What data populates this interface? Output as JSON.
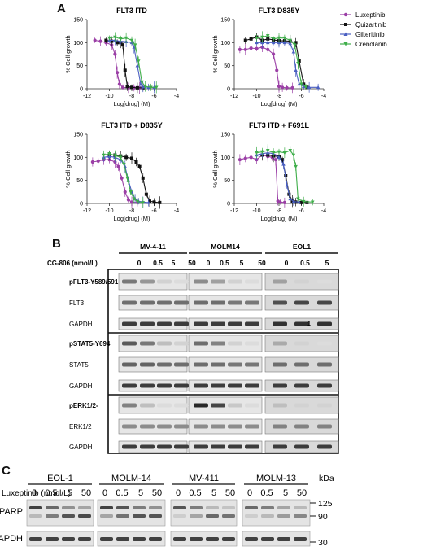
{
  "panel_a": {
    "letter": "A",
    "legend": [
      {
        "name": "Luxeptinib",
        "color": "#9b3fa6"
      },
      {
        "name": "Quizartinib",
        "color": "#111111"
      },
      {
        "name": "Gilteritinib",
        "color": "#4a5fc1"
      },
      {
        "name": "Crenolanib",
        "color": "#3fae4a"
      }
    ],
    "ylabel": "% Cell growth",
    "xlabel": "Log[drug] (M)"
  },
  "chart_data": [
    {
      "type": "line",
      "title": "FLT3 ITD",
      "xlabel": "Log[drug] (M)",
      "ylabel": "% Cell growth",
      "xlim": [
        -12,
        -4
      ],
      "ylim": [
        0,
        150
      ],
      "xticks": [
        -12,
        -10,
        -8,
        -6,
        -4
      ],
      "yticks": [
        0,
        50,
        100,
        150
      ],
      "series": [
        {
          "name": "Luxeptinib",
          "x": [
            -11.3,
            -10.8,
            -10.3,
            -9.8,
            -9.5,
            -9.3,
            -9.1,
            -8.8,
            -8.3,
            -7.8,
            -7.3
          ],
          "values": [
            105,
            103,
            100,
            95,
            75,
            35,
            10,
            3,
            2,
            2,
            2
          ]
        },
        {
          "name": "Quizartinib",
          "x": [
            -10.3,
            -9.8,
            -9.3,
            -9.0,
            -8.8,
            -8.6,
            -8.4,
            -8.0,
            -7.5,
            -7.0
          ],
          "values": [
            105,
            103,
            100,
            100,
            95,
            40,
            5,
            3,
            2,
            2
          ]
        },
        {
          "name": "Gilteritinib",
          "x": [
            -10.0,
            -9.5,
            -9.0,
            -8.5,
            -8.0,
            -7.8,
            -7.5,
            -7.2,
            -7.0,
            -6.5,
            -6.0
          ],
          "values": [
            105,
            105,
            103,
            102,
            100,
            90,
            50,
            10,
            4,
            3,
            3
          ]
        },
        {
          "name": "Crenolanib",
          "x": [
            -10.0,
            -9.5,
            -9.0,
            -8.5,
            -8.0,
            -7.7,
            -7.4,
            -7.1,
            -6.8,
            -6.3,
            -5.8
          ],
          "values": [
            110,
            112,
            108,
            110,
            105,
            95,
            60,
            15,
            5,
            3,
            3
          ]
        }
      ]
    },
    {
      "type": "line",
      "title": "FLT3 D835Y",
      "xlabel": "Log[drug] (M)",
      "ylabel": "% Cell growth",
      "xlim": [
        -12,
        -4
      ],
      "ylim": [
        0,
        150
      ],
      "xticks": [
        -12,
        -10,
        -8,
        -6,
        -4
      ],
      "yticks": [
        0,
        50,
        100,
        150
      ],
      "series": [
        {
          "name": "Luxeptinib",
          "x": [
            -11.5,
            -11.0,
            -10.5,
            -10.0,
            -9.5,
            -9.0,
            -8.5,
            -8.2,
            -8.0,
            -7.7,
            -7.3,
            -6.8
          ],
          "values": [
            85,
            85,
            88,
            87,
            90,
            85,
            75,
            40,
            5,
            3,
            2,
            2
          ]
        },
        {
          "name": "Quizartinib",
          "x": [
            -11.0,
            -10.5,
            -10.0,
            -9.5,
            -9.0,
            -8.5,
            -8.0,
            -7.5,
            -7.0,
            -6.5,
            -6.2,
            -5.8,
            -5.5
          ],
          "values": [
            105,
            108,
            112,
            105,
            108,
            106,
            104,
            104,
            103,
            100,
            60,
            10,
            3
          ]
        },
        {
          "name": "Gilteritinib",
          "x": [
            -10.0,
            -9.5,
            -9.0,
            -8.5,
            -8.0,
            -7.5,
            -7.0,
            -6.7,
            -6.5,
            -6.2,
            -5.8,
            -5.3,
            -4.5
          ],
          "values": [
            100,
            100,
            100,
            100,
            100,
            100,
            98,
            80,
            40,
            10,
            5,
            3,
            3
          ]
        },
        {
          "name": "Crenolanib",
          "x": [
            -10.0,
            -9.5,
            -9.0,
            -8.5,
            -8.0,
            -7.5,
            -7.0,
            -6.6,
            -6.3,
            -6.0,
            -5.6
          ],
          "values": [
            110,
            112,
            115,
            108,
            110,
            110,
            105,
            95,
            55,
            10,
            4
          ]
        }
      ]
    },
    {
      "type": "line",
      "title": "FLT3 ITD + D835Y",
      "xlabel": "Log[drug] (M)",
      "ylabel": "% Cell growth",
      "xlim": [
        -12,
        -4
      ],
      "ylim": [
        0,
        150
      ],
      "xticks": [
        -12,
        -10,
        -8,
        -6,
        -4
      ],
      "yticks": [
        0,
        50,
        100,
        150
      ],
      "series": [
        {
          "name": "Luxeptinib",
          "x": [
            -11.5,
            -11.0,
            -10.5,
            -10.0,
            -9.5,
            -9.2,
            -8.9,
            -8.6,
            -8.3,
            -8.0,
            -7.5
          ],
          "values": [
            90,
            92,
            95,
            95,
            90,
            80,
            55,
            25,
            8,
            3,
            2
          ]
        },
        {
          "name": "Quizartinib",
          "x": [
            -10.0,
            -9.5,
            -9.0,
            -8.5,
            -8.0,
            -7.6,
            -7.3,
            -7.0,
            -6.7,
            -6.4,
            -6.0,
            -5.5
          ],
          "values": [
            105,
            105,
            103,
            100,
            98,
            90,
            80,
            55,
            20,
            5,
            3,
            2
          ]
        },
        {
          "name": "Gilteritinib",
          "x": [
            -10.5,
            -10.0,
            -9.5,
            -9.0,
            -8.6,
            -8.3,
            -8.0,
            -7.7,
            -7.4,
            -7.0,
            -6.5
          ],
          "values": [
            100,
            102,
            100,
            95,
            80,
            50,
            25,
            10,
            5,
            3,
            2
          ]
        },
        {
          "name": "Crenolanib",
          "x": [
            -10.5,
            -10.0,
            -9.5,
            -9.0,
            -8.7,
            -8.4,
            -8.1,
            -7.8,
            -7.5,
            -7.0
          ],
          "values": [
            105,
            108,
            104,
            100,
            85,
            55,
            25,
            10,
            4,
            2
          ]
        }
      ]
    },
    {
      "type": "line",
      "title": "FLT3 ITD + F691L",
      "xlabel": "Log[drug] (M)",
      "ylabel": "% Cell growth",
      "xlim": [
        -12,
        -4
      ],
      "ylim": [
        0,
        150
      ],
      "xticks": [
        -12,
        -10,
        -8,
        -6,
        -4
      ],
      "yticks": [
        0,
        50,
        100,
        150
      ],
      "series": [
        {
          "name": "Luxeptinib",
          "x": [
            -11.5,
            -11.0,
            -10.5,
            -10.0,
            -9.5,
            -9.0,
            -8.6,
            -8.3,
            -8.1,
            -7.9,
            -7.5
          ],
          "values": [
            95,
            98,
            100,
            95,
            105,
            102,
            100,
            95,
            5,
            3,
            2
          ]
        },
        {
          "name": "Quizartinib",
          "x": [
            -9.5,
            -9.0,
            -8.5,
            -8.0,
            -7.7,
            -7.4,
            -7.1,
            -6.8,
            -6.5,
            -6.0,
            -5.5
          ],
          "values": [
            105,
            105,
            103,
            102,
            95,
            60,
            20,
            5,
            3,
            2,
            2
          ]
        },
        {
          "name": "Gilteritinib",
          "x": [
            -10.0,
            -9.5,
            -9.0,
            -8.5,
            -8.0,
            -7.6,
            -7.3,
            -7.0,
            -6.7,
            -6.2
          ],
          "values": [
            105,
            108,
            110,
            108,
            100,
            85,
            40,
            10,
            4,
            3
          ]
        },
        {
          "name": "Crenolanib",
          "x": [
            -10.0,
            -9.5,
            -9.0,
            -8.5,
            -8.0,
            -7.5,
            -7.0,
            -6.7,
            -6.5,
            -6.3,
            -5.8,
            -5.0
          ],
          "values": [
            110,
            112,
            115,
            110,
            112,
            110,
            115,
            105,
            80,
            10,
            4,
            3
          ]
        }
      ]
    }
  ],
  "panel_b": {
    "letter": "B",
    "cell_lines": [
      "MV-4-11",
      "MOLM14",
      "EOL1"
    ],
    "treatment_label": "CG-806 (nmol/L)",
    "doses": [
      "0",
      "0.5",
      "5",
      "50",
      "0",
      "0.5",
      "5",
      "50",
      "0",
      "0.5",
      "5"
    ],
    "rows": [
      "pFLT3-Y589/591",
      "FLT3",
      "GAPDH",
      "pSTAT5-Y694",
      "STAT5",
      "GAPDH",
      "pERK1/2-",
      "ERK1/2",
      "GAPDH"
    ],
    "artifact_label": "1"
  },
  "panel_c": {
    "letter": "C",
    "cell_lines": [
      "EOL-1",
      "MOLM-14",
      "MV-411",
      "MOLM-13"
    ],
    "treatment_label": "Luxeptinib (nmol/L)",
    "doses": [
      "0",
      "0.5",
      "5",
      "50"
    ],
    "rows": [
      "PARP",
      "GAPDH"
    ],
    "kda_label": "kDa",
    "markers": [
      "125",
      "90",
      "30"
    ]
  }
}
